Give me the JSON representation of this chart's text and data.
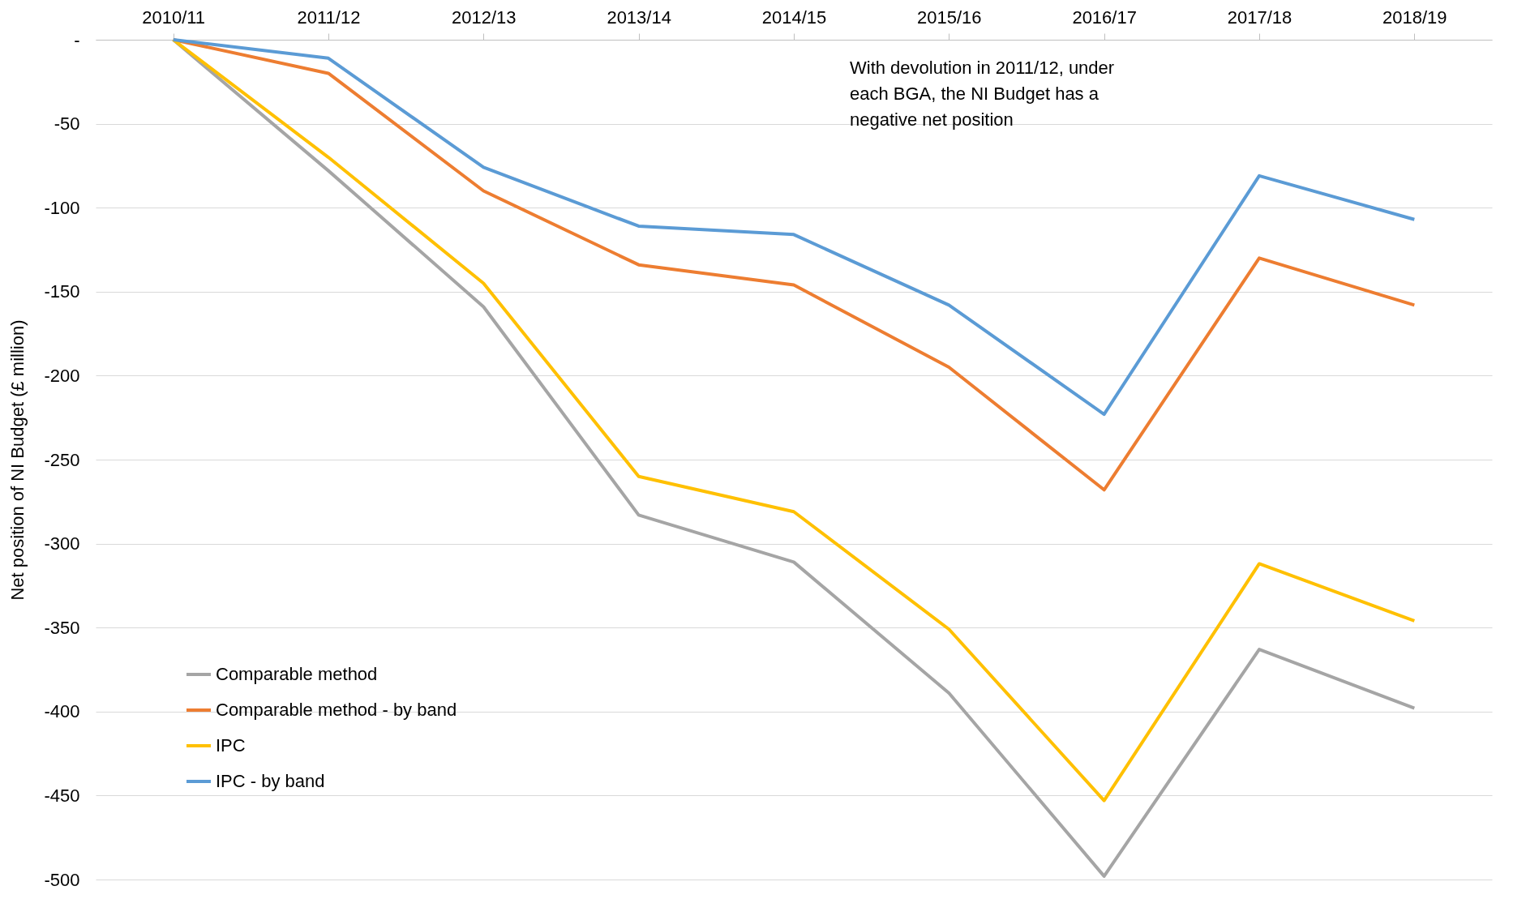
{
  "chart_data": {
    "type": "line",
    "ylabel": "Net position of NI Budget (£ million)",
    "categories": [
      "2010/11",
      "2011/12",
      "2012/13",
      "2013/14",
      "2014/15",
      "2015/16",
      "2016/17",
      "2017/18",
      "2018/19"
    ],
    "series": [
      {
        "name": "Comparable method",
        "color": "#a5a5a5",
        "values": [
          0,
          -78,
          -159,
          -283,
          -311,
          -389,
          -498,
          -363,
          -398
        ]
      },
      {
        "name": "Comparable method - by band",
        "color": "#ed7d31",
        "values": [
          0,
          -20,
          -90,
          -134,
          -146,
          -195,
          -268,
          -130,
          -158
        ]
      },
      {
        "name": "IPC",
        "color": "#ffc000",
        "values": [
          0,
          -70,
          -145,
          -260,
          -281,
          -351,
          -453,
          -312,
          -346
        ]
      },
      {
        "name": "IPC - by band",
        "color": "#5b9bd5",
        "values": [
          0,
          -11,
          -76,
          -111,
          -116,
          -158,
          -223,
          -81,
          -107
        ]
      }
    ],
    "ylim": [
      -500,
      0
    ],
    "yticks": [
      {
        "value": 0,
        "label": "-"
      },
      -50,
      -100,
      -150,
      -200,
      -250,
      -300,
      -350,
      -400,
      -450,
      -500
    ],
    "grid": "y",
    "legend": "bottom left",
    "marker": "none",
    "line_style": "solid",
    "annotations": [
      "With devolution in 2011/12,  under each BGA, the NI Budget has a negative net position"
    ]
  }
}
